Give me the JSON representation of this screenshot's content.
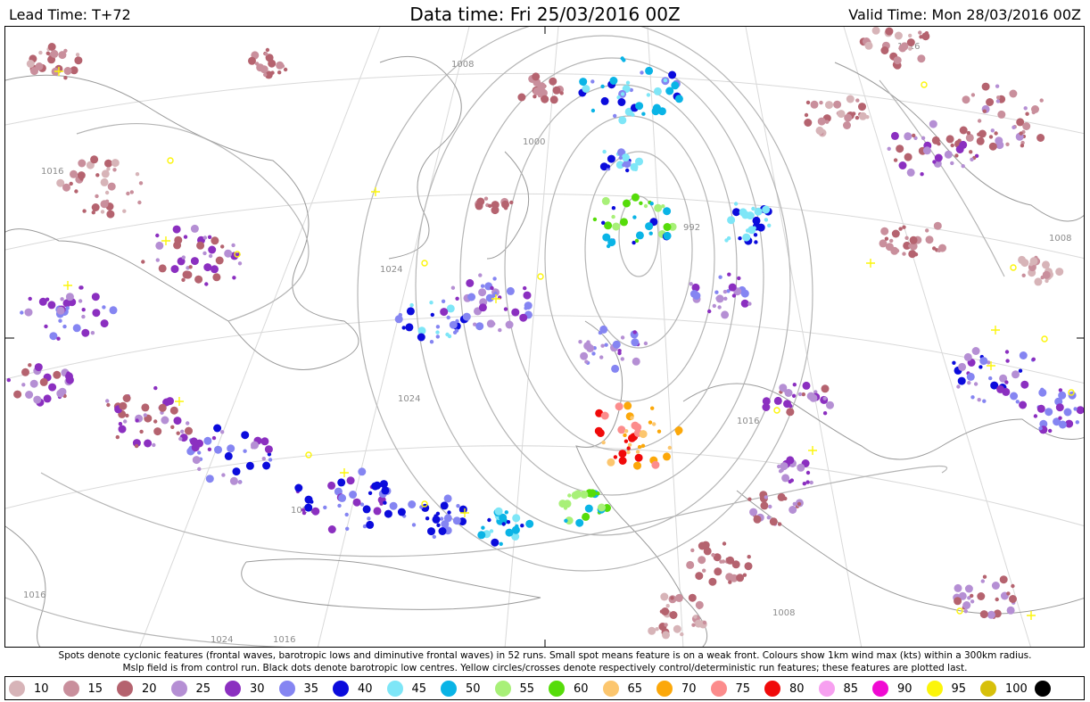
{
  "header": {
    "lead_time": "Lead Time: T+72",
    "data_time": "Data time:  Fri 25/03/2016 00Z",
    "valid_time": "Valid Time: Mon 28/03/2016 00Z"
  },
  "isobar_labels": [
    "1016",
    "1008",
    "1000",
    "992",
    "1024",
    "1016",
    "1008",
    "1024",
    "1024",
    "1016",
    "1016",
    "1008",
    "1016",
    "1024"
  ],
  "caption": {
    "line1": "Spots denote cyclonic features (frontal waves, barotropic lows and diminutive frontal waves) in 52 runs. Small spot means feature is on a weak front. Colours show 1km wind max (kts) within a 300km radius.",
    "line2": "Mslp field is from control run. Black dots denote barotropic low centres. Yellow circles/crosses denote respectively control/deterministic run features; these features are plotted last."
  },
  "legend": [
    {
      "label": "10",
      "color": "#d7b4b8"
    },
    {
      "label": "15",
      "color": "#c98f9c"
    },
    {
      "label": "20",
      "color": "#b5636f"
    },
    {
      "label": "25",
      "color": "#b58fd4"
    },
    {
      "label": "30",
      "color": "#8b2fc0"
    },
    {
      "label": "35",
      "color": "#8585f2"
    },
    {
      "label": "40",
      "color": "#0b0bdc"
    },
    {
      "label": "45",
      "color": "#7ee6f7"
    },
    {
      "label": "50",
      "color": "#0ab4e6"
    },
    {
      "label": "55",
      "color": "#a8f078"
    },
    {
      "label": "60",
      "color": "#56dc0a"
    },
    {
      "label": "65",
      "color": "#fcc66e"
    },
    {
      "label": "70",
      "color": "#fca80a"
    },
    {
      "label": "75",
      "color": "#fc8c8c"
    },
    {
      "label": "80",
      "color": "#f00a0a"
    },
    {
      "label": "85",
      "color": "#f7a0f0"
    },
    {
      "label": "90",
      "color": "#f00ad2"
    },
    {
      "label": "95",
      "color": "#fcf50a"
    },
    {
      "label": "100",
      "color": "#d7c00a"
    },
    {
      "label": "",
      "color": "#000000"
    }
  ]
}
